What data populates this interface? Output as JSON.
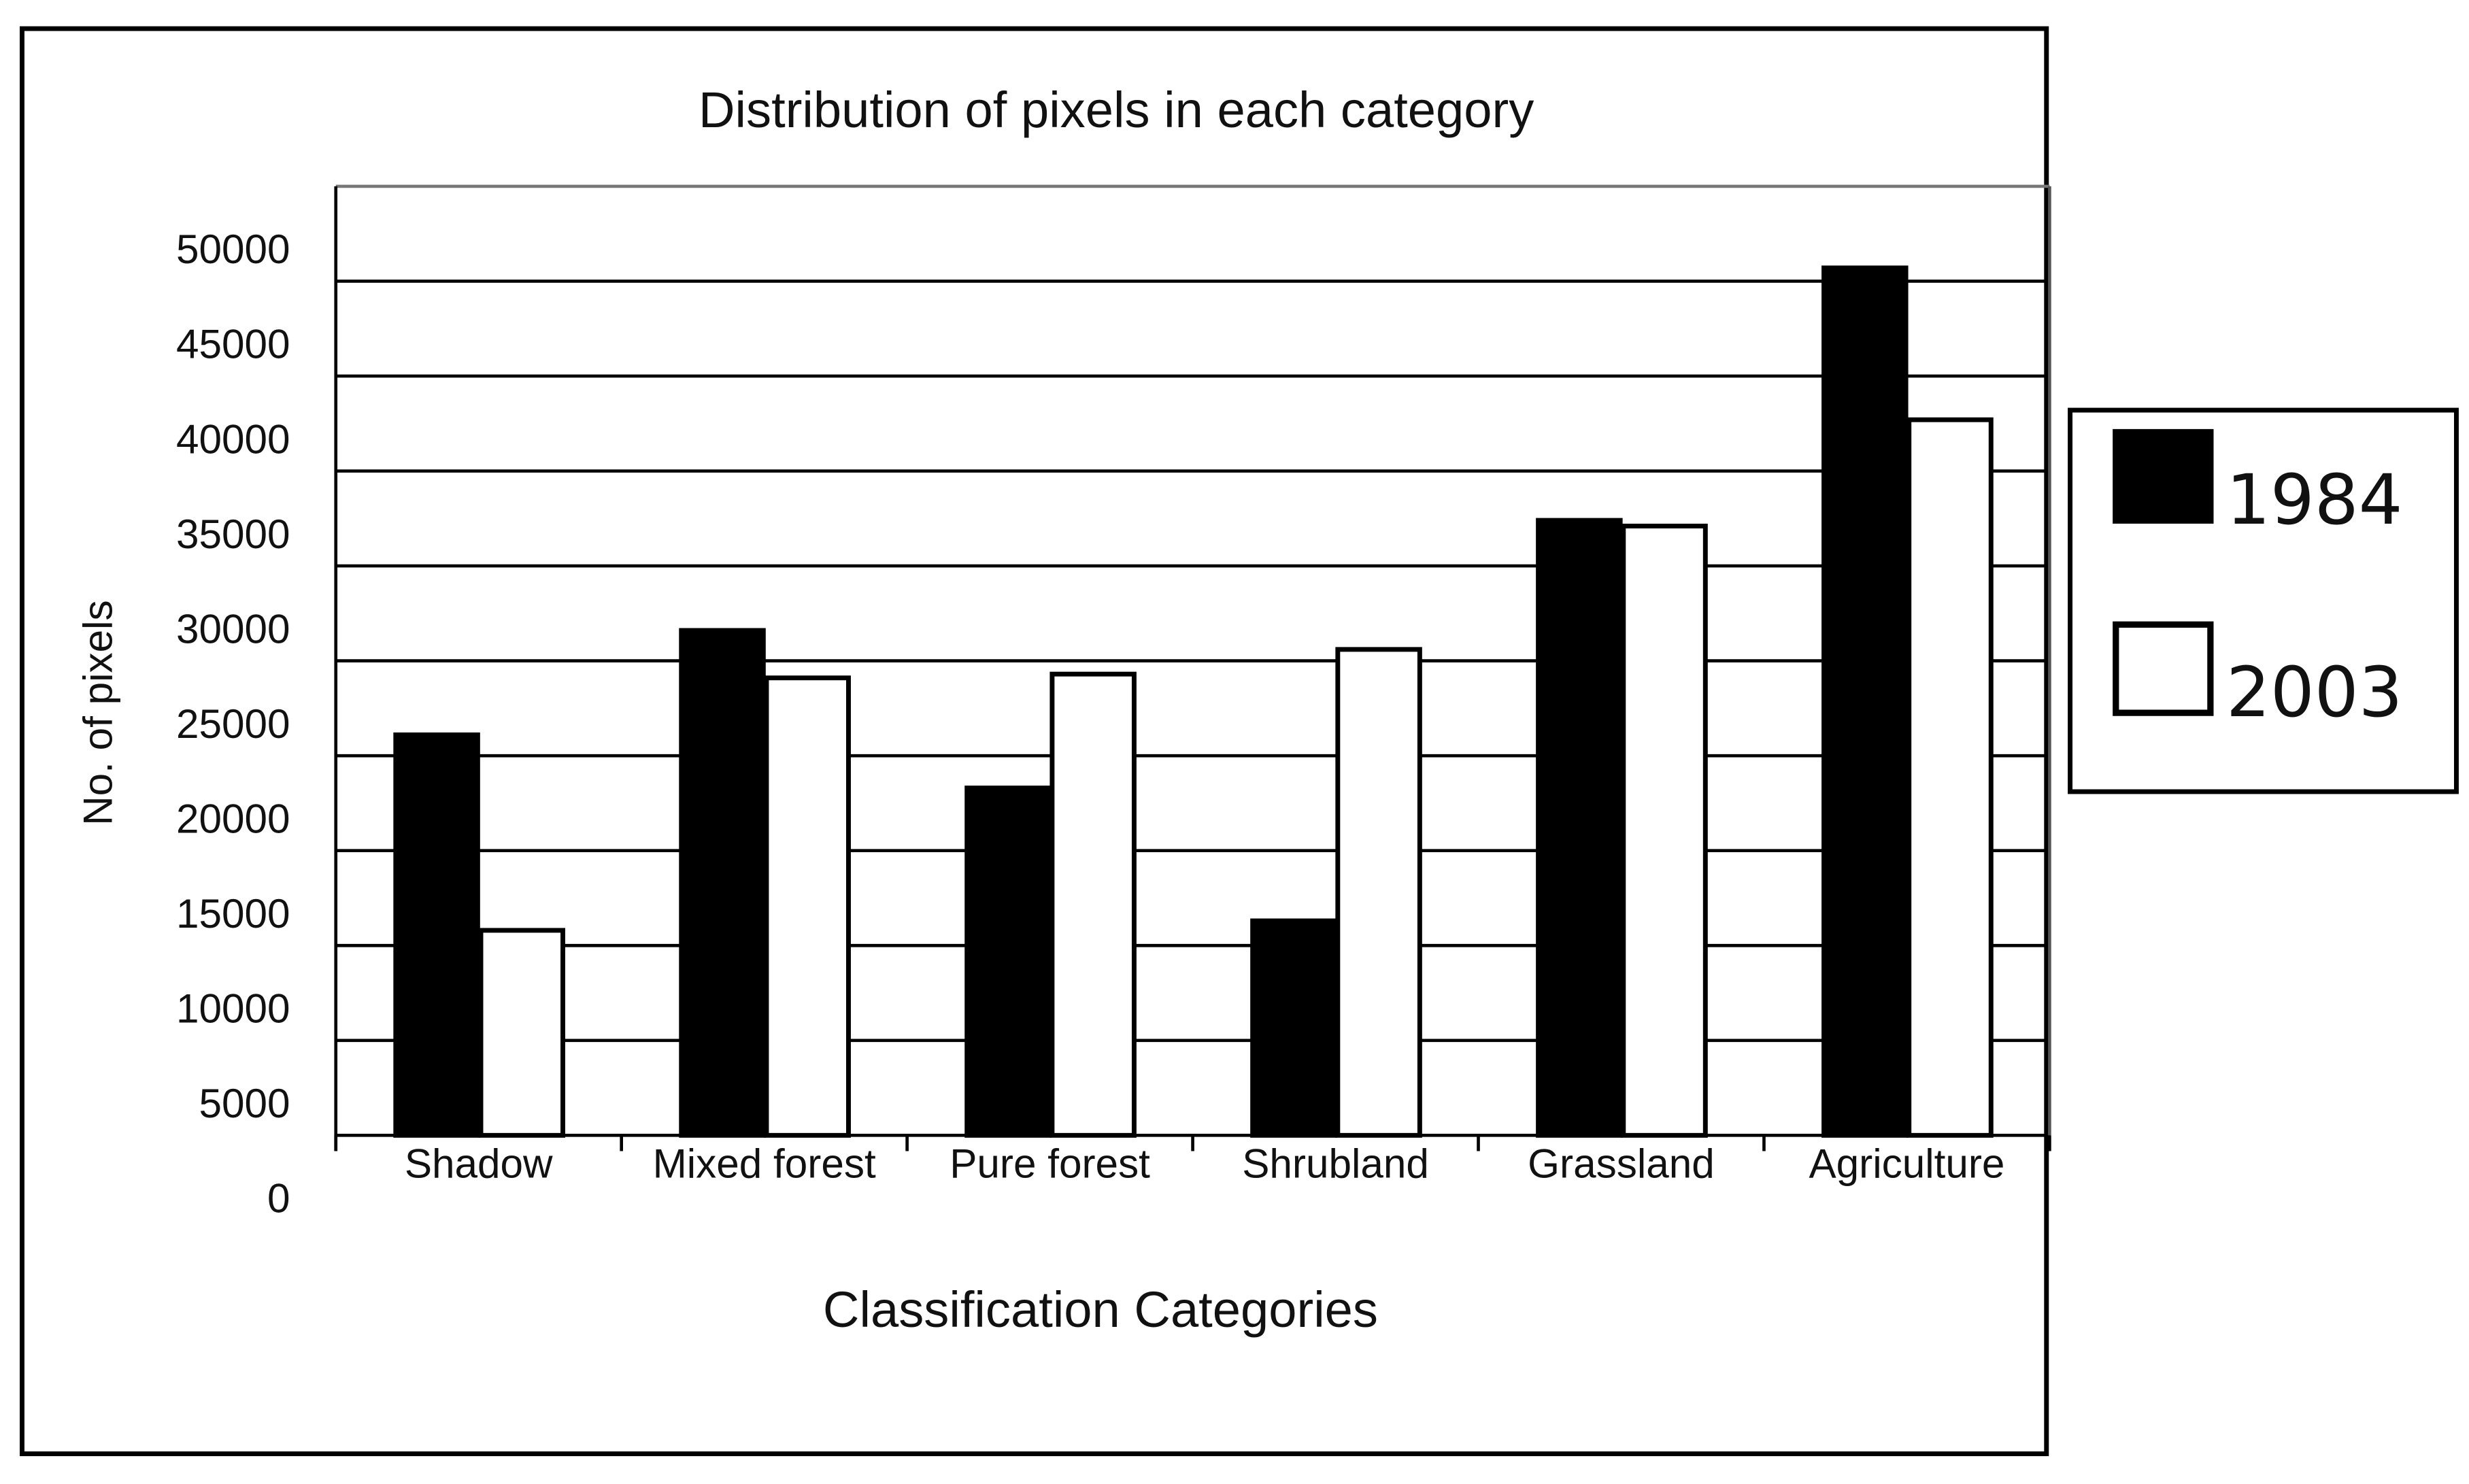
{
  "chart_data": {
    "type": "bar",
    "title": "Distribution of pixels in each category",
    "x_label": "Classification Categories",
    "y_label": "No. of pixels",
    "categories": [
      "Shadow",
      "Mixed forest",
      "Pure forest",
      "Shrubland",
      "Grassland",
      "Agriculture"
    ],
    "series": [
      {
        "name": "1984",
        "color": "#000000",
        "values": [
          21100,
          26600,
          18300,
          11300,
          32400,
          45700
        ]
      },
      {
        "name": "2003",
        "color": "#ffffff",
        "values": [
          10800,
          24100,
          24300,
          25600,
          32100,
          37700
        ]
      }
    ],
    "ylim": [
      0,
      50000
    ],
    "yticks": [
      0,
      5000,
      10000,
      15000,
      20000,
      25000,
      30000,
      35000,
      40000,
      45000,
      50000
    ],
    "grid": true,
    "legend": "right"
  }
}
